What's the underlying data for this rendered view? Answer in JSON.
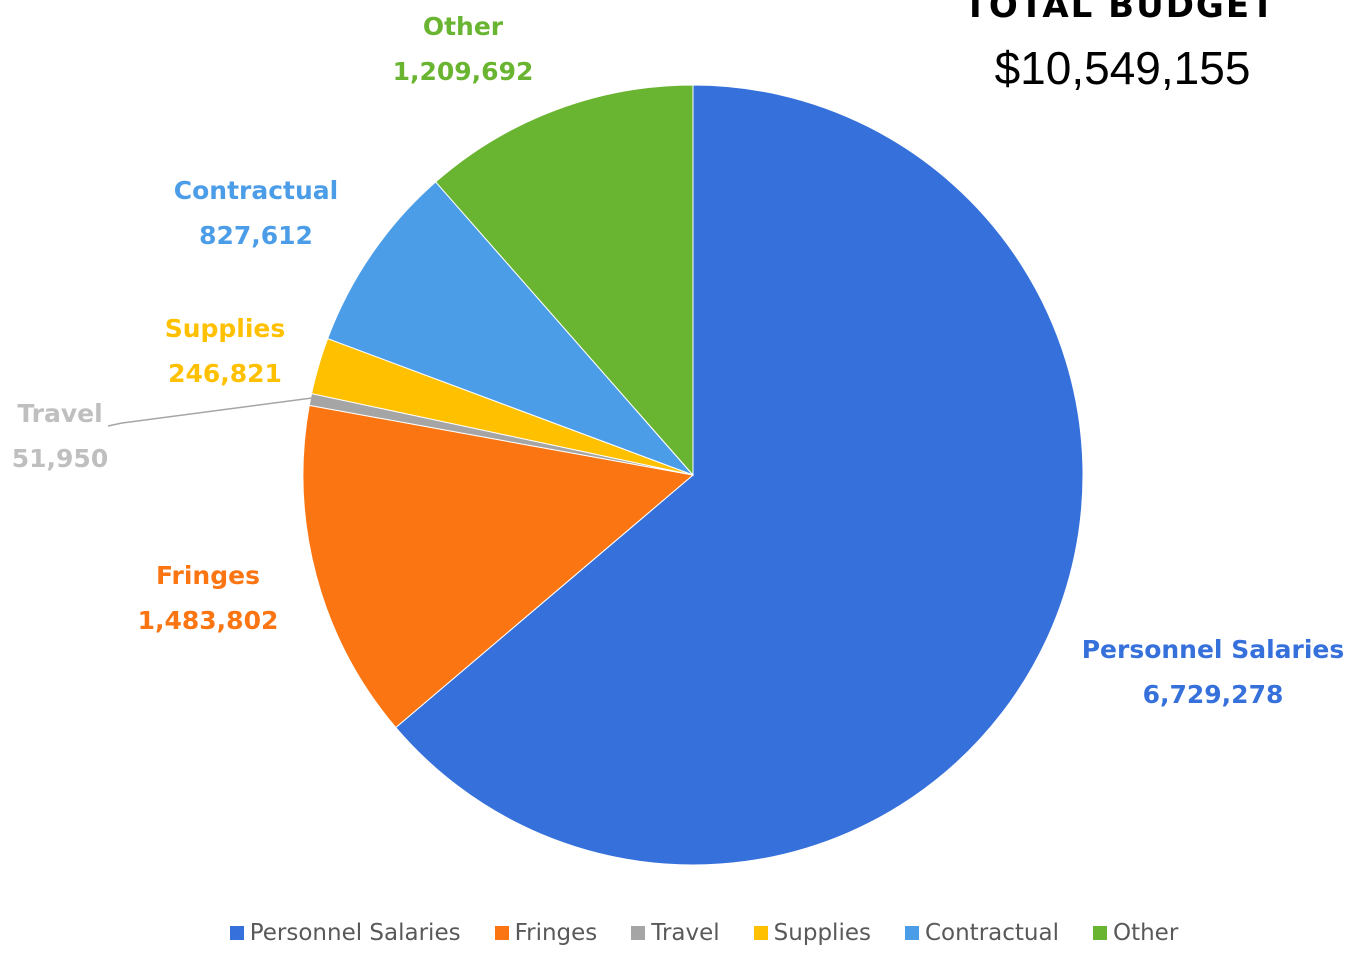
{
  "total": {
    "heading": "TOTAL BUDGET",
    "value": "$10,549,155"
  },
  "chart_data": {
    "type": "pie",
    "start_angle_deg": 0,
    "direction": "clockwise",
    "slices": [
      {
        "label": "Personnel Salaries",
        "value": 6729278,
        "display": "6,729,278",
        "color": "#3570db"
      },
      {
        "label": "Fringes",
        "value": 1483802,
        "display": "1,483,802",
        "color": "#fb7512"
      },
      {
        "label": "Travel",
        "value": 51950,
        "display": "51,950",
        "color": "#a5a5a5"
      },
      {
        "label": "Supplies",
        "value": 246821,
        "display": "246,821",
        "color": "#ffc000"
      },
      {
        "label": "Contractual",
        "value": 827612,
        "display": "827,612",
        "color": "#4b9de8"
      },
      {
        "label": "Other",
        "value": 1209692,
        "display": "1,209,692",
        "color": "#69b531"
      }
    ],
    "label_colors": {
      "Personnel Salaries": "#3570db",
      "Fringes": "#fb7512",
      "Travel": "#bfbfbf",
      "Supplies": "#ffc000",
      "Contractual": "#4b9de8",
      "Other": "#69b531"
    },
    "legend_position": "bottom"
  }
}
